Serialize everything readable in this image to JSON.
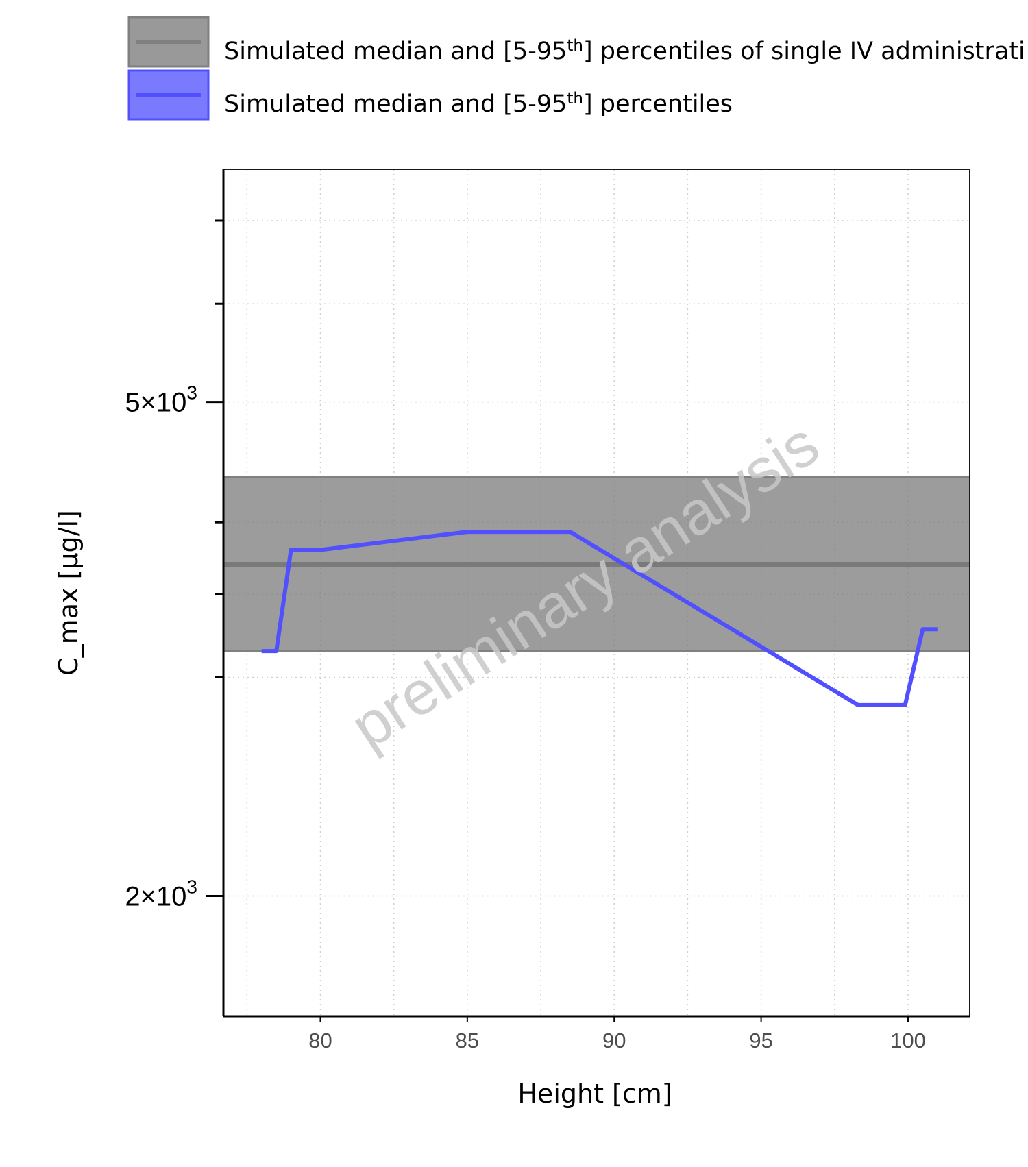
{
  "chart_data": {
    "type": "line",
    "xlabel": "Height [cm]",
    "ylabel": "C_max [µg/l]",
    "xlim": [
      76.7,
      102.1
    ],
    "ylim": [
      1600,
      7700
    ],
    "y_scale": "log",
    "x_ticks": [
      80,
      85,
      90,
      95,
      100
    ],
    "y_tick_labels": [
      {
        "value": 5000,
        "mantissa": "5",
        "exponent": "3"
      },
      {
        "value": 2000,
        "mantissa": "2",
        "exponent": "3"
      }
    ],
    "y_minor_ticks": [
      1500,
      3000,
      3500,
      4000,
      6000,
      7000
    ],
    "grid": true,
    "legend_position": "top",
    "watermark": "preliminary analysis",
    "reference_band": {
      "name": "Simulated median and [5-95th] percentiles of single IV administrati",
      "name_parts": [
        "Simulated median and [5-95",
        "th",
        "] percentiles of single IV administrati"
      ],
      "median": 3700,
      "lower": 3150,
      "upper": 4350,
      "color": "#808080"
    },
    "series": [
      {
        "name": "Simulated median and [5-95th] percentiles",
        "name_parts": [
          "Simulated median and [5-95",
          "th",
          "] percentiles"
        ],
        "color": "#5050ff",
        "x": [
          78.0,
          78.5,
          79.0,
          80.0,
          85.0,
          88.5,
          98.3,
          99.9,
          100.5,
          101.0
        ],
        "y": [
          3150,
          3150,
          3800,
          3800,
          3930,
          3930,
          2850,
          2850,
          3280,
          3280
        ]
      }
    ]
  }
}
